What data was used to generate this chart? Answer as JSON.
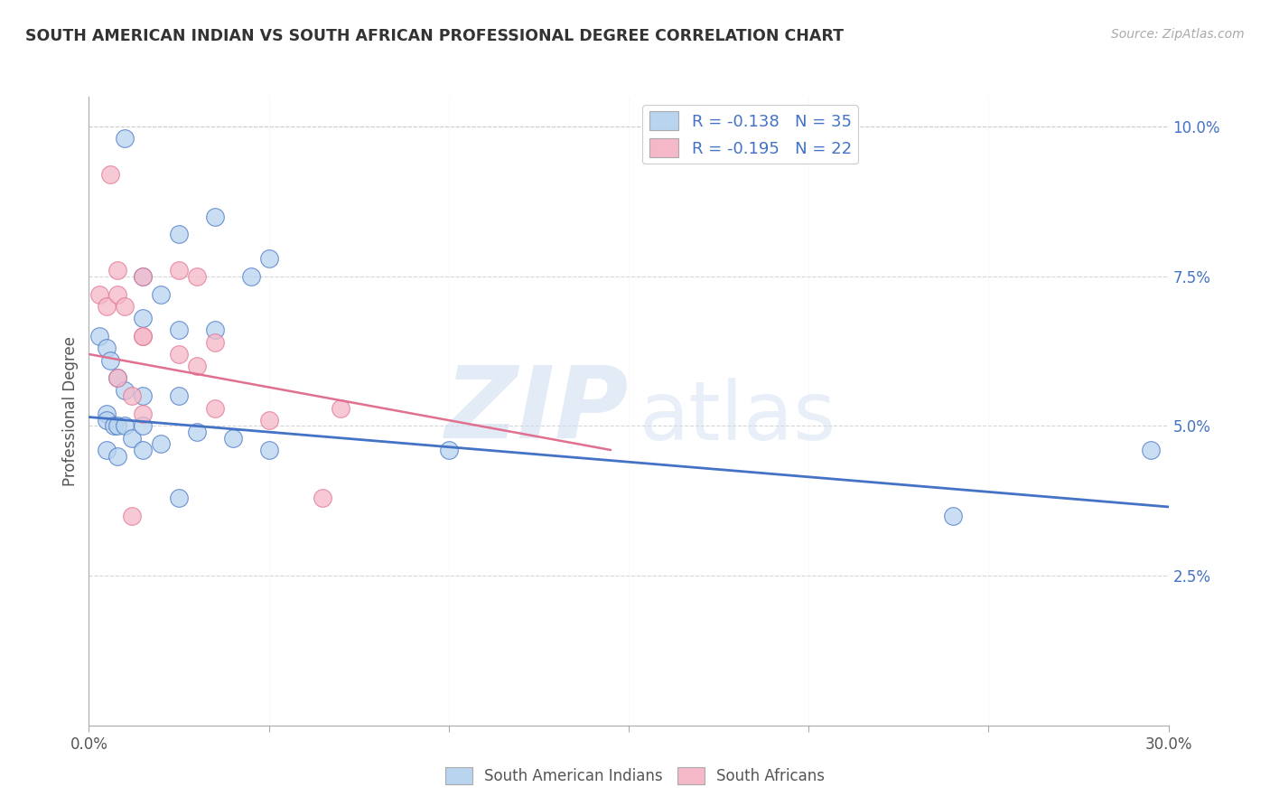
{
  "title": "SOUTH AMERICAN INDIAN VS SOUTH AFRICAN PROFESSIONAL DEGREE CORRELATION CHART",
  "source": "Source: ZipAtlas.com",
  "ylabel": "Professional Degree",
  "legend_r_blue": "R = -0.138",
  "legend_n_blue": "N = 35",
  "legend_r_pink": "R = -0.195",
  "legend_n_pink": "N = 22",
  "legend_label_blue": "South American Indians",
  "legend_label_pink": "South Africans",
  "blue_color": "#b8d4ee",
  "pink_color": "#f5b8c8",
  "trendline_blue": "#4472c4",
  "trendline_pink": "#e07090",
  "watermark_zip": "ZIP",
  "watermark_atlas": "atlas",
  "blue_scatter_x": [
    1.0,
    3.5,
    2.5,
    5.0,
    4.5,
    1.5,
    2.0,
    1.5,
    2.5,
    3.5,
    0.3,
    0.5,
    0.6,
    0.8,
    1.0,
    1.5,
    2.5,
    0.5,
    0.5,
    0.7,
    0.8,
    1.0,
    1.2,
    1.5,
    2.0,
    3.0,
    4.0,
    0.5,
    0.8,
    1.5,
    2.5,
    5.0,
    10.0,
    24.0,
    29.5
  ],
  "blue_scatter_y": [
    9.8,
    8.5,
    8.2,
    7.8,
    7.5,
    7.5,
    7.2,
    6.8,
    6.6,
    6.6,
    6.5,
    6.3,
    6.1,
    5.8,
    5.6,
    5.5,
    5.5,
    5.2,
    5.1,
    5.0,
    5.0,
    5.0,
    4.8,
    5.0,
    4.7,
    4.9,
    4.8,
    4.6,
    4.5,
    4.6,
    3.8,
    4.6,
    4.6,
    3.5,
    4.6
  ],
  "pink_scatter_x": [
    0.3,
    0.5,
    0.6,
    0.8,
    1.5,
    2.5,
    3.0,
    0.8,
    1.0,
    1.5,
    1.5,
    2.5,
    3.0,
    0.8,
    1.2,
    1.5,
    3.5,
    3.5,
    5.0,
    7.0,
    6.5,
    1.2
  ],
  "pink_scatter_y": [
    7.2,
    7.0,
    9.2,
    7.6,
    7.5,
    7.6,
    7.5,
    7.2,
    7.0,
    6.5,
    6.5,
    6.2,
    6.0,
    5.8,
    5.5,
    5.2,
    6.4,
    5.3,
    5.1,
    5.3,
    3.8,
    3.5
  ],
  "xlim": [
    0,
    30
  ],
  "ylim": [
    0,
    10.5
  ],
  "background_color": "#ffffff",
  "grid_color": "#cccccc",
  "blue_trend_x0": 0,
  "blue_trend_y0": 5.15,
  "blue_trend_x1": 30,
  "blue_trend_y1": 3.65,
  "pink_trend_x0": 0,
  "pink_trend_y0": 6.2,
  "pink_trend_x1": 14.5,
  "pink_trend_y1": 4.6
}
